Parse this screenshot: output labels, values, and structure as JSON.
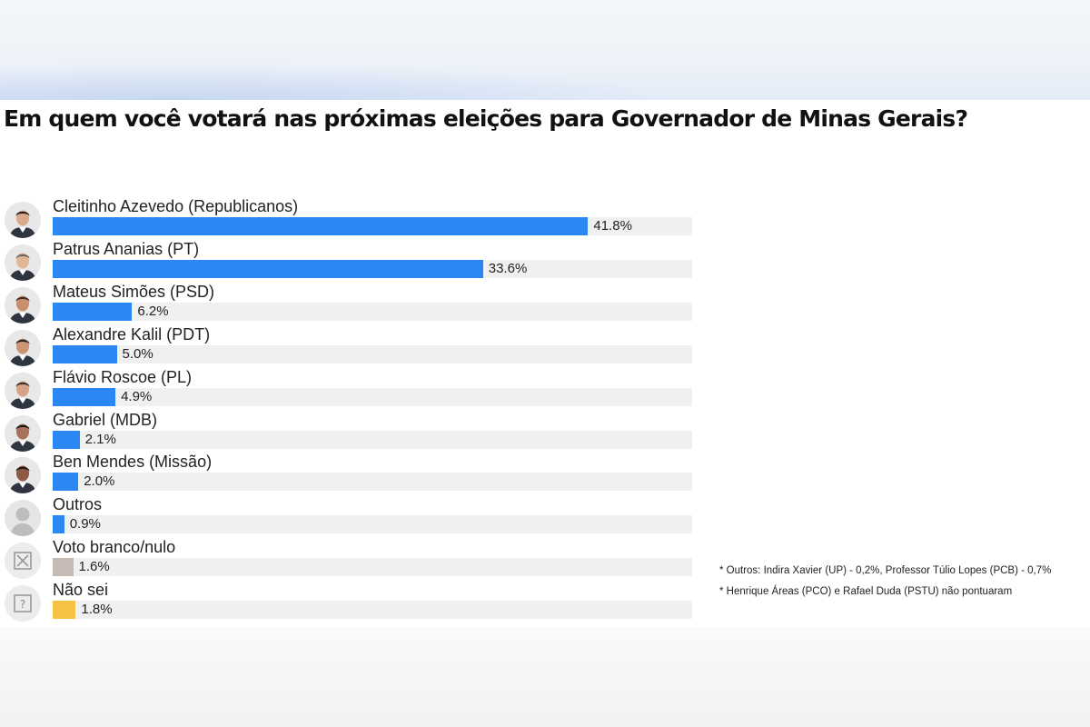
{
  "chart_data": {
    "type": "bar",
    "orientation": "horizontal",
    "title": "Em quem você votará nas próximas eleições para Governador de Minas Gerais?",
    "categories": [
      "Cleitinho Azevedo (Republicanos)",
      "Patrus Ananias (PT)",
      "Mateus Simões (PSD)",
      "Alexandre Kalil (PDT)",
      "Flávio Roscoe (PL)",
      "Gabriel (MDB)",
      "Ben Mendes (Missão)",
      "Outros",
      "Voto branco/nulo",
      "Não sei"
    ],
    "values": [
      41.8,
      33.6,
      6.2,
      5.0,
      4.9,
      2.1,
      2.0,
      0.9,
      1.6,
      1.8
    ],
    "value_labels": [
      "41.8%",
      "33.6%",
      "6.2%",
      "5.0%",
      "4.9%",
      "2.1%",
      "2.0%",
      "0.9%",
      "1.6%",
      "1.8%"
    ],
    "bar_colors": [
      "#2b87f3",
      "#2b87f3",
      "#2b87f3",
      "#2b87f3",
      "#2b87f3",
      "#2b87f3",
      "#2b87f3",
      "#2b87f3",
      "#c6bab4",
      "#f6c244"
    ],
    "avatar_icons": [
      "candidate-photo-icon",
      "candidate-photo-icon",
      "candidate-photo-icon",
      "candidate-photo-icon",
      "candidate-photo-icon",
      "candidate-photo-icon",
      "candidate-photo-icon",
      "generic-person-icon",
      "ballot-x-icon",
      "question-mark-icon"
    ],
    "xlim": [
      0,
      50
    ],
    "grid": false,
    "legend": "none",
    "notes": [
      "* Outros: Indira Xavier (UP) - 0,2%, Professor Túlio Lopes (PCB) - 0,7%",
      "* Henrique Áreas (PCO) e Rafael Duda (PSTU) não pontuaram"
    ]
  }
}
